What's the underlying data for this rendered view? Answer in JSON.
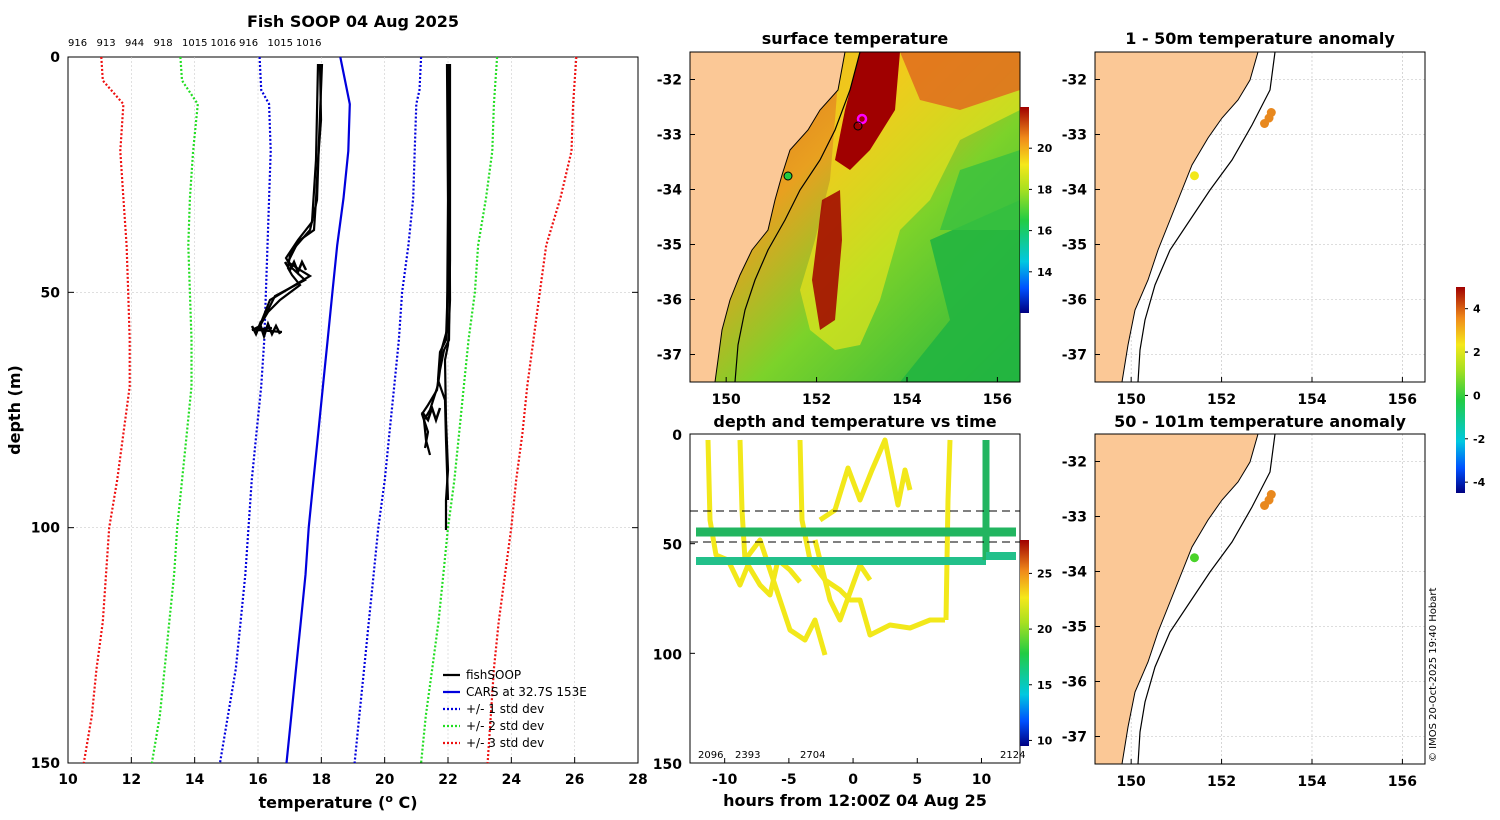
{
  "chart_data": [
    {
      "type": "line",
      "title": "Fish SOOP 04 Aug 2025",
      "xlabel": "temperature (",
      "xlabel_sup": "o",
      "xlabel_tail": " C)",
      "ylabel": "depth (m)",
      "xlim": [
        10,
        28
      ],
      "ylim": [
        150,
        0
      ],
      "xticks": [
        "10",
        "12",
        "14",
        "16",
        "18",
        "20",
        "22",
        "24",
        "26",
        "28"
      ],
      "yticks": [
        "0",
        "50",
        "100",
        "150"
      ],
      "top_labels": [
        "916",
        "913",
        "944",
        "918",
        "1015",
        "1016",
        "916",
        "1015",
        "1016"
      ],
      "legend": [
        "fishSOOP",
        "CARS at 32.7S 153E",
        "+/- 1 std dev",
        "+/- 2 std dev",
        "+/- 3 std dev"
      ],
      "colors": {
        "fishsoop": "#000000",
        "cars": "#0000dd",
        "std1": "#0000dd",
        "std2": "#22dd22",
        "std3": "#ee1111"
      },
      "depth": [
        0,
        10,
        20,
        30,
        40,
        50,
        60,
        70,
        80,
        90,
        100,
        110,
        120,
        130,
        140,
        150
      ],
      "cars_mean": [
        18.6,
        18.9,
        18.85,
        18.7,
        18.5,
        18.35,
        18.2,
        18.05,
        17.9,
        17.75,
        17.6,
        17.5,
        17.35,
        17.2,
        17.05,
        16.9
      ],
      "std_curves": [
        {
          "name": "std1",
          "depth": [
            0,
            7,
            10,
            20,
            30,
            40,
            50,
            60,
            70,
            80,
            90,
            100,
            110,
            120,
            130,
            140,
            150
          ],
          "lo": [
            16.05,
            16.1,
            16.35,
            16.4,
            16.35,
            16.3,
            16.25,
            16.2,
            16.1,
            15.95,
            15.8,
            15.7,
            15.6,
            15.45,
            15.3,
            15.05,
            14.8
          ],
          "hi": [
            21.15,
            21.1,
            21.0,
            20.95,
            20.9,
            20.75,
            20.55,
            20.45,
            20.3,
            20.15,
            20.0,
            19.8,
            19.65,
            19.5,
            19.35,
            19.2,
            19.05
          ]
        },
        {
          "name": "std2",
          "depth": [
            0,
            5,
            10,
            20,
            30,
            40,
            50,
            60,
            70,
            80,
            90,
            100,
            110,
            120,
            130,
            140,
            150
          ],
          "lo": [
            13.55,
            13.6,
            14.1,
            13.95,
            13.85,
            13.8,
            13.85,
            13.9,
            13.9,
            13.75,
            13.6,
            13.45,
            13.35,
            13.2,
            13.05,
            12.9,
            12.65
          ],
          "hi": [
            23.55,
            23.5,
            23.45,
            23.4,
            23.2,
            22.95,
            22.85,
            22.65,
            22.5,
            22.35,
            22.2,
            22.0,
            21.85,
            21.7,
            21.5,
            21.3,
            21.15
          ]
        },
        {
          "name": "std3",
          "depth": [
            0,
            5,
            10,
            20,
            30,
            40,
            50,
            60,
            70,
            80,
            90,
            100,
            110,
            120,
            130,
            140,
            150
          ],
          "lo": [
            11.05,
            11.1,
            11.75,
            11.65,
            11.75,
            11.85,
            11.9,
            11.95,
            11.95,
            11.75,
            11.55,
            11.3,
            11.2,
            11.1,
            10.9,
            10.75,
            10.5
          ],
          "hi": [
            26.05,
            26.0,
            25.95,
            25.9,
            25.55,
            25.1,
            24.9,
            24.7,
            24.5,
            24.35,
            24.15,
            24.0,
            23.8,
            23.6,
            23.45,
            23.35,
            23.25
          ]
        }
      ]
    },
    {
      "type": "heatmap",
      "title": "surface temperature",
      "xticks": [
        "150",
        "152",
        "154",
        "156"
      ],
      "yticks": [
        "-32",
        "-33",
        "-34",
        "-35",
        "-36",
        "-37"
      ],
      "colorbar_ticks": [
        "20",
        "18",
        "16",
        "14"
      ]
    },
    {
      "type": "scatter",
      "title": "1 - 50m temperature anomaly",
      "xticks": [
        "150",
        "152",
        "154",
        "156"
      ],
      "yticks": [
        "-32",
        "-33",
        "-34",
        "-35",
        "-36",
        "-37"
      ],
      "points": [
        {
          "lon": 153.1,
          "lat": -32.6,
          "color": "#e8881e"
        },
        {
          "lon": 153.05,
          "lat": -32.7,
          "color": "#e8881e"
        },
        {
          "lon": 152.95,
          "lat": -32.8,
          "color": "#e8881e"
        },
        {
          "lon": 151.4,
          "lat": -33.75,
          "color": "#f2e81a"
        }
      ]
    },
    {
      "type": "scatter",
      "title": "50 - 101m temperature anomaly",
      "xticks": [
        "150",
        "152",
        "154",
        "156"
      ],
      "yticks": [
        "-32",
        "-33",
        "-34",
        "-35",
        "-36",
        "-37"
      ],
      "points": [
        {
          "lon": 153.1,
          "lat": -32.6,
          "color": "#e8881e"
        },
        {
          "lon": 153.05,
          "lat": -32.7,
          "color": "#e8881e"
        },
        {
          "lon": 152.95,
          "lat": -32.8,
          "color": "#e8881e"
        },
        {
          "lon": 151.4,
          "lat": -33.75,
          "color": "#4ad32a"
        }
      ]
    },
    {
      "type": "scatter",
      "title": "depth and temperature vs time",
      "xlabel": "hours from 12:00Z 04 Aug 25",
      "xticks": [
        "-10",
        "-5",
        "0",
        "5",
        "10"
      ],
      "yticks": [
        "0",
        "50",
        "100",
        "150"
      ],
      "bottom_labels": [
        "2096",
        "2393",
        "2704",
        "2124"
      ],
      "colorbar_ticks": [
        "25",
        "20",
        "15",
        "10"
      ]
    }
  ],
  "anomaly_colorbar_ticks": [
    "4",
    "2",
    "0",
    "-2",
    "-4"
  ],
  "credit": "© IMOS 20-Oct-2025 19:40 Hobart"
}
